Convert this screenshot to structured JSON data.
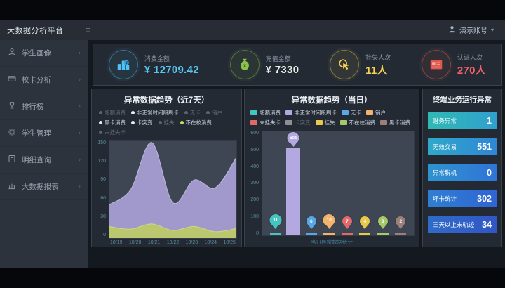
{
  "app": {
    "title": "大数据分析平台",
    "user_label": "演示账号"
  },
  "sidebar": {
    "items": [
      {
        "label": "学生画像",
        "icon": "user-icon"
      },
      {
        "label": "校卡分析",
        "icon": "card-icon"
      },
      {
        "label": "排行榜",
        "icon": "trophy-icon"
      },
      {
        "label": "学生管理",
        "icon": "gear-icon"
      },
      {
        "label": "明细查询",
        "icon": "list-icon"
      },
      {
        "label": "大数据报表",
        "icon": "chart-icon"
      }
    ]
  },
  "kpis": [
    {
      "label": "消费金额",
      "value": "¥ 12709.42",
      "icon": "consume-icon",
      "color": "#4fc3f7",
      "value_color": "#56c7f2"
    },
    {
      "label": "充值金额",
      "value": "¥ 7330",
      "icon": "moneybag-icon",
      "color": "#8bc34a",
      "value_color": "#e6efe4"
    },
    {
      "label": "挂失人次",
      "value": "11人",
      "icon": "click-icon",
      "color": "#f7d154",
      "value_color": "#f7d154"
    },
    {
      "label": "认证人次",
      "value": "270人",
      "icon": "idcard-icon",
      "color": "#ef6156",
      "value_color": "#ef6168"
    }
  ],
  "chart_data": [
    {
      "type": "area",
      "title": "异常数据趋势（近7天）",
      "x": [
        "10/19",
        "10/20",
        "10/21",
        "10/22",
        "10/23",
        "10/24",
        "10/25"
      ],
      "series": [
        {
          "name": "非正常时间段刷卡",
          "values": [
            52,
            75,
            148,
            55,
            90,
            78,
            125
          ],
          "color": "#a69ed3"
        },
        {
          "name": "不在校消费",
          "values": [
            18,
            14,
            22,
            12,
            18,
            10,
            15
          ],
          "color": "#bdc968"
        }
      ],
      "ylim": [
        0,
        150
      ],
      "yticks": [
        0,
        30,
        60,
        90,
        120,
        150
      ],
      "grid": false,
      "legend_position": "top",
      "legend": [
        {
          "label": "超额消费",
          "on": false
        },
        {
          "label": "非正常时间段刷卡",
          "on": true
        },
        {
          "label": "无卡",
          "on": false
        },
        {
          "label": "销户",
          "on": false
        },
        {
          "label": "黑卡消费",
          "on": true
        },
        {
          "label": "卡突变",
          "on": true
        },
        {
          "label": "挂失",
          "on": false
        },
        {
          "label": "不在校消费",
          "on": true,
          "dot": "#cddc5a"
        },
        {
          "label": "未挂失卡",
          "on": false
        }
      ]
    },
    {
      "type": "bar",
      "title": "异常数据趋势（当日）",
      "categories": [
        "超额消费",
        "非正常时间段刷卡",
        "无卡",
        "销户",
        "未挂失卡",
        "挂失",
        "不在校消费",
        "黑卡消费"
      ],
      "values": [
        11,
        501,
        6,
        10,
        7,
        4,
        3,
        2
      ],
      "colors": [
        "#45c5c0",
        "#b3a8e0",
        "#5aa7e8",
        "#f5b26b",
        "#e06a6a",
        "#e8c94a",
        "#a5c96a",
        "#9b7f78"
      ],
      "ylim": [
        0,
        600
      ],
      "yticks": [
        0,
        100,
        200,
        300,
        400,
        500,
        600
      ],
      "grid": false,
      "legend_position": "top",
      "caption": "当日异常数据统计",
      "legend": [
        {
          "label": "超额消费",
          "color": "#45c5c0"
        },
        {
          "label": "非正常时间段刷卡",
          "color": "#b3a8e0"
        },
        {
          "label": "无卡",
          "color": "#5aa7e8"
        },
        {
          "label": "销户",
          "color": "#f5b26b"
        },
        {
          "label": "未挂失卡",
          "color": "#e06a6a"
        },
        {
          "label": "卡突变",
          "color": "#8a8f98",
          "dim": true
        },
        {
          "label": "挂失",
          "color": "#e8c94a"
        },
        {
          "label": "不在校消费",
          "color": "#a5c96a"
        },
        {
          "label": "黑卡消费",
          "color": "#9b7f78"
        }
      ]
    }
  ],
  "terminal": {
    "title": "终端业务运行异常",
    "stats": [
      {
        "label": "财务异常",
        "value": "1",
        "from": "#2fb9b4",
        "to": "#31a0cf"
      },
      {
        "label": "无效交易",
        "value": "551",
        "from": "#2fa9c9",
        "to": "#2f86d6"
      },
      {
        "label": "异常脱机",
        "value": "0",
        "from": "#2f93cf",
        "to": "#2f74d8"
      },
      {
        "label": "坏卡统计",
        "value": "302",
        "from": "#2f7fd2",
        "to": "#2f64d4"
      },
      {
        "label": "三天以上未轨迹",
        "value": "34",
        "from": "#2f6cc9",
        "to": "#3156c6"
      }
    ]
  }
}
